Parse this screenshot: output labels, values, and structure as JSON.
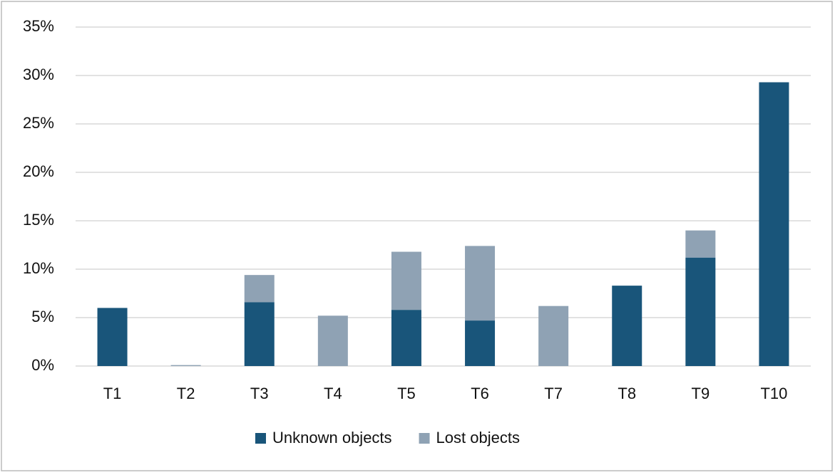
{
  "chart_data": {
    "type": "stacked-bar",
    "categories": [
      "T1",
      "T2",
      "T3",
      "T4",
      "T5",
      "T6",
      "T7",
      "T8",
      "T9",
      "T10"
    ],
    "series": [
      {
        "name": "Unknown objects",
        "color": "#19557a",
        "values": [
          6.0,
          0,
          6.6,
          0,
          5.8,
          4.7,
          0,
          8.3,
          11.2,
          29.3
        ]
      },
      {
        "name": "Lost objects",
        "color": "#8fa2b4",
        "values": [
          0,
          0.1,
          2.8,
          5.2,
          6.0,
          7.7,
          6.2,
          0,
          2.8,
          0
        ]
      }
    ],
    "ylim": [
      0,
      35
    ],
    "yticks": [
      {
        "value": 0,
        "label": "0%"
      },
      {
        "value": 5,
        "label": "5%"
      },
      {
        "value": 10,
        "label": "10%"
      },
      {
        "value": 15,
        "label": "15%"
      },
      {
        "value": 20,
        "label": "20%"
      },
      {
        "value": 25,
        "label": "25%"
      },
      {
        "value": 30,
        "label": "30%"
      },
      {
        "value": 35,
        "label": "35%"
      }
    ],
    "grid": true,
    "legend": "bottom"
  }
}
